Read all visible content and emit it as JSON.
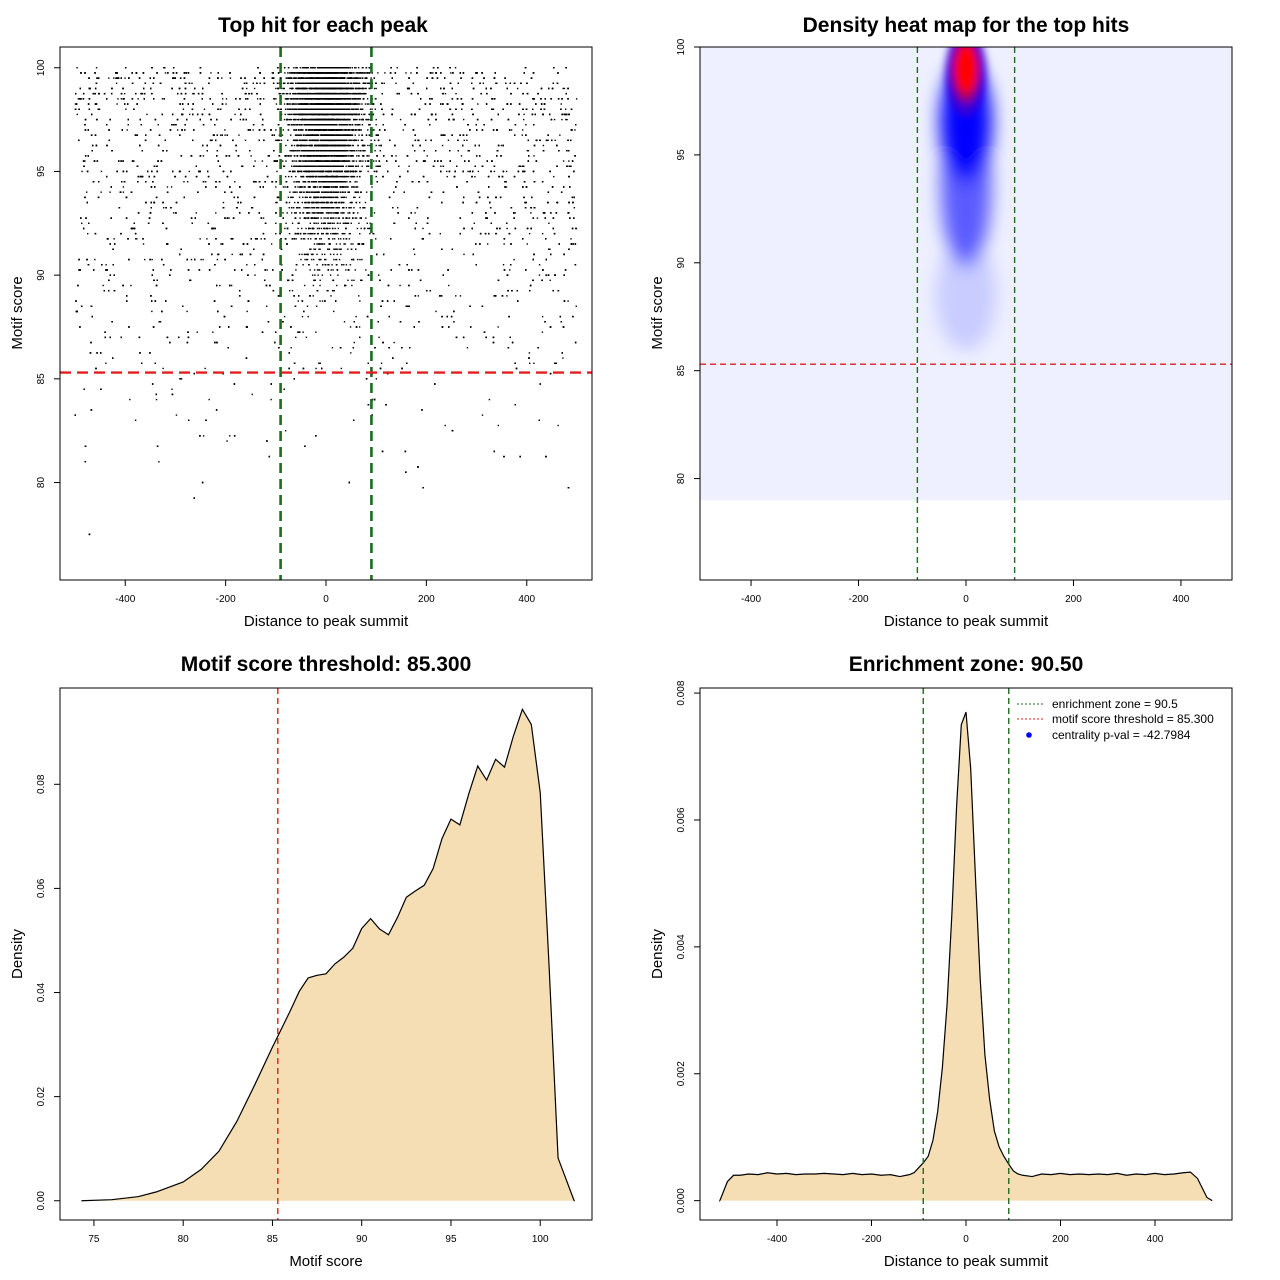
{
  "chart_data": [
    {
      "id": "scatter",
      "type": "scatter",
      "title": "Top hit for each peak",
      "xlabel": "Distance to peak summit",
      "ylabel": "Motif score",
      "xlim": [
        -530,
        530
      ],
      "ylim": [
        75.3,
        101
      ],
      "xticks": [
        -400,
        -200,
        0,
        200,
        400
      ],
      "yticks": [
        80,
        85,
        90,
        95,
        100
      ],
      "xtick_labels": [
        "-400",
        "-200",
        "0",
        "200",
        "400"
      ],
      "ytick_labels": [
        "80",
        "85",
        "90",
        "95",
        "100"
      ],
      "x_range": [
        -500,
        500
      ],
      "score_distribution": {
        "min": 76.5,
        "max": 100,
        "mode": 99,
        "central_window": [
          -100,
          100
        ]
      },
      "vlines": [
        -90.5,
        90.5
      ],
      "hline": 85.3,
      "colors": {
        "points": "#000000",
        "vline": "#1f6b1f",
        "hline": "#e02020"
      }
    },
    {
      "id": "heatmap",
      "type": "heatmap",
      "title": "Density heat map for the top hits",
      "xlabel": "Distance to peak summit",
      "ylabel": "Motif score",
      "xlim": [
        -495,
        495
      ],
      "ylim": [
        75.3,
        100
      ],
      "xticks": [
        -400,
        -200,
        0,
        200,
        400
      ],
      "yticks": [
        80,
        85,
        90,
        95,
        100
      ],
      "xtick_labels": [
        "-400",
        "-200",
        "0",
        "200",
        "400"
      ],
      "ytick_labels": [
        "80",
        "85",
        "90",
        "95",
        "100"
      ],
      "hotspot": {
        "x": 0,
        "y": 99
      },
      "vlines": [
        -90.5,
        90.5
      ],
      "hline": 85.3,
      "colors": {
        "low": "#ffffff",
        "mid": "#0000ff",
        "high": "#ff0000",
        "vline": "#1f6b1f",
        "hline": "#e02020"
      }
    },
    {
      "id": "score_density",
      "type": "area",
      "title": "Motif score threshold: 85.300",
      "xlabel": "Motif score",
      "ylabel": "Density",
      "xlim": [
        73.1,
        102.9
      ],
      "ylim": [
        -0.0037,
        0.0985
      ],
      "xticks": [
        75,
        80,
        85,
        90,
        95,
        100
      ],
      "yticks": [
        0.0,
        0.02,
        0.04,
        0.06,
        0.08
      ],
      "xtick_labels": [
        "75",
        "80",
        "85",
        "90",
        "95",
        "100"
      ],
      "ytick_labels": [
        "0.00",
        "0.02",
        "0.04",
        "0.06",
        "0.08"
      ],
      "x": [
        74.3,
        76,
        77.5,
        78.5,
        80,
        81,
        82,
        83,
        84,
        85,
        85.3,
        86,
        86.5,
        87,
        87.5,
        88,
        88.5,
        89,
        89.5,
        90,
        90.5,
        91,
        91.5,
        92,
        92.5,
        93,
        93.5,
        94,
        94.5,
        95,
        95.5,
        96,
        96.5,
        97,
        97.5,
        98,
        98.5,
        99,
        99.5,
        100,
        100.5,
        101,
        101.9
      ],
      "y": [
        0.0,
        0.0002,
        0.0008,
        0.0017,
        0.0036,
        0.006,
        0.0095,
        0.0152,
        0.0222,
        0.0295,
        0.0316,
        0.0365,
        0.0402,
        0.0428,
        0.0433,
        0.0436,
        0.0455,
        0.0468,
        0.0485,
        0.0523,
        0.0542,
        0.0522,
        0.0511,
        0.0544,
        0.0583,
        0.0595,
        0.0606,
        0.0638,
        0.0696,
        0.0733,
        0.0722,
        0.0782,
        0.0835,
        0.0808,
        0.0848,
        0.0833,
        0.0893,
        0.0944,
        0.0915,
        0.0784,
        0.0448,
        0.0082,
        0.0
      ],
      "vline": 85.3,
      "colors": {
        "fill": "#f5deb3",
        "line": "#000000",
        "vline": "#e02020"
      }
    },
    {
      "id": "distance_density",
      "type": "area",
      "title": "Enrichment zone: 90.50",
      "xlabel": "Distance to peak summit",
      "ylabel": "Density",
      "xlim": [
        -563,
        563
      ],
      "ylim": [
        -0.000305,
        0.00808
      ],
      "xticks": [
        -400,
        -200,
        0,
        200,
        400
      ],
      "yticks": [
        0.0,
        0.002,
        0.004,
        0.006,
        0.008
      ],
      "xtick_labels": [
        "-400",
        "-200",
        "0",
        "200",
        "400"
      ],
      "ytick_labels": [
        "0.000",
        "0.002",
        "0.004",
        "0.006",
        "0.008"
      ],
      "x": [
        -521,
        -505,
        -492,
        -478,
        -460,
        -440,
        -420,
        -400,
        -380,
        -360,
        -340,
        -320,
        -300,
        -280,
        -260,
        -240,
        -220,
        -200,
        -180,
        -160,
        -140,
        -120,
        -110,
        -100,
        -90,
        -80,
        -70,
        -60,
        -50,
        -40,
        -30,
        -20,
        -10,
        0,
        10,
        20,
        30,
        40,
        50,
        60,
        70,
        80,
        90,
        100,
        110,
        120,
        140,
        160,
        180,
        200,
        220,
        240,
        260,
        280,
        300,
        320,
        340,
        360,
        380,
        400,
        420,
        440,
        460,
        475,
        490,
        500,
        510,
        521
      ],
      "y": [
        0.0,
        0.0003,
        0.0004,
        0.0004,
        0.00042,
        0.00041,
        0.00044,
        0.00042,
        0.00043,
        0.00041,
        0.00042,
        0.00042,
        0.00043,
        0.00042,
        0.00041,
        0.00043,
        0.00041,
        0.00042,
        0.0004,
        0.00041,
        0.00038,
        0.00041,
        0.00044,
        0.00052,
        0.0006,
        0.0007,
        0.00095,
        0.0014,
        0.0021,
        0.0031,
        0.0045,
        0.0062,
        0.0075,
        0.0077,
        0.0068,
        0.0051,
        0.0035,
        0.0023,
        0.0016,
        0.0011,
        0.00085,
        0.0007,
        0.00058,
        0.00047,
        0.00042,
        0.0004,
        0.00038,
        0.00042,
        0.00041,
        0.00043,
        0.00041,
        0.00042,
        0.00041,
        0.00042,
        0.00041,
        0.00043,
        0.0004,
        0.00042,
        0.00041,
        0.00043,
        0.00041,
        0.00042,
        0.00044,
        0.00045,
        0.00035,
        0.0002,
        5e-05,
        0.0
      ],
      "vlines": [
        -90.5,
        90.5
      ],
      "legend": {
        "position": "top-right",
        "entries": [
          {
            "label": "enrichment zone = 90.5",
            "symbol": "dotted-line",
            "color": "#1f6b1f"
          },
          {
            "label": "motif score threshold = 85.300",
            "symbol": "dotted-line",
            "color": "#e02020"
          },
          {
            "label": "centrality p-val = -42.7984",
            "symbol": "point",
            "color": "#0000ff"
          }
        ]
      },
      "colors": {
        "fill": "#f5deb3",
        "line": "#000000",
        "vline": "#1f6b1f"
      }
    }
  ]
}
